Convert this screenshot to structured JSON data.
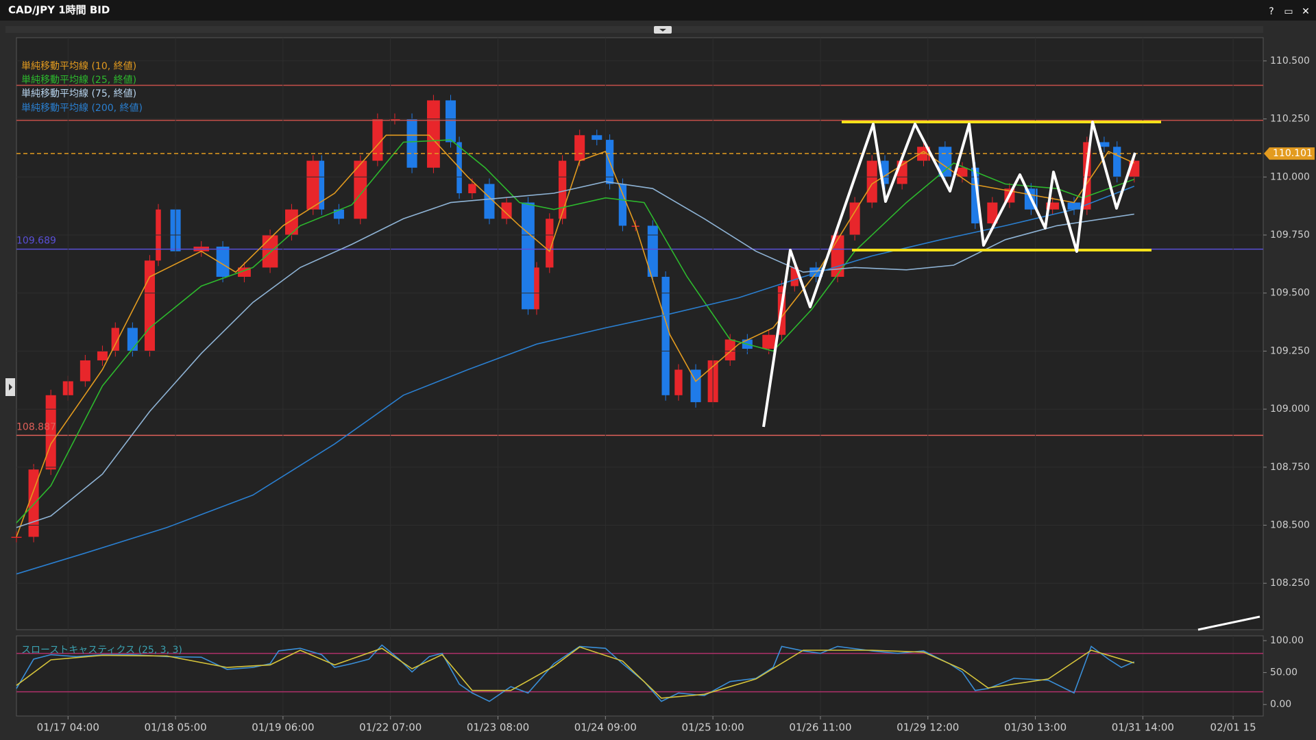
{
  "window": {
    "controls": [
      "?",
      "▭",
      "✕"
    ]
  },
  "chart_data": [
    {
      "type": "candlestick",
      "title": "CAD/JPY 1時間 BID",
      "up_color": "#e8262b",
      "down_color": "#1f7be8",
      "grid": true,
      "xlim": [
        0,
        290
      ],
      "xticks": [
        {
          "value": 12,
          "label": "01/17 04:00"
        },
        {
          "value": 37,
          "label": "01/18 05:00"
        },
        {
          "value": 62,
          "label": "01/19 06:00"
        },
        {
          "value": 87,
          "label": "01/22 07:00"
        },
        {
          "value": 112,
          "label": "01/23 08:00"
        },
        {
          "value": 137,
          "label": "01/24 09:00"
        },
        {
          "value": 162,
          "label": "01/25 10:00"
        },
        {
          "value": 187,
          "label": "01/26 11:00"
        },
        {
          "value": 212,
          "label": "01/29 12:00"
        },
        {
          "value": 237,
          "label": "01/30 13:00"
        },
        {
          "value": 262,
          "label": "01/31 14:00"
        },
        {
          "value": 283,
          "label": "02/01 15"
        }
      ],
      "ylim": [
        108.05,
        110.6
      ],
      "yticks": [
        {
          "value": 108.25,
          "label": "108.250"
        },
        {
          "value": 108.5,
          "label": "108.500"
        },
        {
          "value": 108.75,
          "label": "108.750"
        },
        {
          "value": 109,
          "label": "109.000"
        },
        {
          "value": 109.25,
          "label": "109.250"
        },
        {
          "value": 109.5,
          "label": "109.500"
        },
        {
          "value": 109.75,
          "label": "109.750"
        },
        {
          "value": 110,
          "label": "110.000"
        },
        {
          "value": 110.25,
          "label": "110.250"
        },
        {
          "value": 110.5,
          "label": "110.500"
        }
      ],
      "x": [
        0,
        4,
        8,
        12,
        16,
        20,
        23,
        27,
        31,
        33,
        37,
        43,
        48,
        53,
        59,
        64,
        69,
        71,
        75,
        80,
        84,
        88,
        92,
        97,
        101,
        103,
        106,
        110,
        114,
        119,
        121,
        124,
        127,
        131,
        135,
        138,
        141,
        144,
        148,
        151,
        154,
        158,
        162,
        166,
        170,
        175,
        178,
        181,
        186,
        191,
        195,
        199,
        202,
        206,
        211,
        216,
        220,
        223,
        227,
        231,
        236,
        241,
        246,
        249,
        253,
        256,
        260
      ],
      "close": [
        108.45,
        108.74,
        109.06,
        109.12,
        109.21,
        109.25,
        109.35,
        109.25,
        109.64,
        109.86,
        109.68,
        109.7,
        109.57,
        109.61,
        109.75,
        109.86,
        110.07,
        109.86,
        109.82,
        110.07,
        110.25,
        110.25,
        110.04,
        110.33,
        110.15,
        109.93,
        109.97,
        109.82,
        109.89,
        109.43,
        109.61,
        109.82,
        110.07,
        110.18,
        110.16,
        109.97,
        109.79,
        109.79,
        109.57,
        109.06,
        109.17,
        109.03,
        109.21,
        109.3,
        109.26,
        109.32,
        109.53,
        109.61,
        109.57,
        109.75,
        109.89,
        110.07,
        109.97,
        110.07,
        110.13,
        110.0,
        110.04,
        109.8,
        109.89,
        109.95,
        109.86,
        109.89,
        109.86,
        110.15,
        110.13,
        110.0,
        110.07
      ],
      "current_price": {
        "value": 110.101,
        "label": "110.101",
        "color": "#e39b1f"
      },
      "levels": [
        {
          "value": 110.395,
          "color": "#c8504a"
        },
        {
          "value": 110.244,
          "color": "#c8504a"
        },
        {
          "value": 109.689,
          "label": "109.689",
          "color": "#5a50d8"
        },
        {
          "value": 108.887,
          "label": "108.887",
          "color": "#e0605a"
        }
      ],
      "series": [
        {
          "name": "単純移動平均線 (10, 終値)",
          "color": "#e39b1f",
          "x": [
            0,
            8,
            20,
            31,
            43,
            51,
            62,
            74,
            86,
            96,
            105,
            117,
            124,
            131,
            137,
            144,
            152,
            158,
            168,
            176,
            187,
            199,
            211,
            222,
            234,
            246,
            254,
            260
          ],
          "values": [
            108.45,
            108.85,
            109.17,
            109.57,
            109.68,
            109.59,
            109.79,
            109.93,
            110.18,
            110.18,
            110.0,
            109.79,
            109.68,
            110.07,
            110.11,
            109.79,
            109.32,
            109.12,
            109.28,
            109.35,
            109.61,
            109.97,
            110.11,
            109.97,
            109.93,
            109.89,
            110.11,
            110.06
          ]
        },
        {
          "name": "単純移動平均線 (25, 終値)",
          "color": "#2db92d",
          "x": [
            0,
            8,
            20,
            31,
            43,
            55,
            66,
            78,
            90,
            101,
            109,
            117,
            125,
            137,
            146,
            156,
            166,
            176,
            185,
            195,
            207,
            218,
            230,
            242,
            248,
            260
          ],
          "values": [
            108.51,
            108.67,
            109.1,
            109.35,
            109.53,
            109.61,
            109.79,
            109.88,
            110.15,
            110.16,
            110.04,
            109.89,
            109.86,
            109.91,
            109.89,
            109.57,
            109.3,
            109.25,
            109.43,
            109.68,
            109.89,
            110.06,
            109.97,
            109.95,
            109.91,
            109.99
          ]
        },
        {
          "name": "単純移動平均線 (75, 終値)",
          "color": "#8fb4d6",
          "x": [
            0,
            8,
            20,
            31,
            43,
            55,
            66,
            78,
            90,
            101,
            113,
            125,
            137,
            148,
            160,
            172,
            183,
            195,
            207,
            218,
            230,
            242,
            260
          ],
          "values": [
            108.49,
            108.54,
            108.72,
            108.99,
            109.24,
            109.46,
            109.61,
            109.71,
            109.82,
            109.89,
            109.91,
            109.93,
            109.98,
            109.95,
            109.82,
            109.68,
            109.59,
            109.61,
            109.6,
            109.62,
            109.73,
            109.79,
            109.84
          ]
        },
        {
          "name": "単純移動平均線 (200, 終値)",
          "color": "#2a7fd0",
          "x": [
            0,
            16,
            35,
            55,
            74,
            90,
            105,
            121,
            137,
            152,
            168,
            183,
            199,
            215,
            230,
            246,
            260
          ],
          "values": [
            108.29,
            108.38,
            108.49,
            108.63,
            108.85,
            109.06,
            109.17,
            109.28,
            109.35,
            109.41,
            109.48,
            109.57,
            109.66,
            109.73,
            109.79,
            109.86,
            109.96
          ]
        }
      ]
    },
    {
      "type": "line",
      "title": "スローストキャスティクス (25, 3, 3)",
      "xlim": [
        0,
        290
      ],
      "ylim": [
        -18,
        107.5
      ],
      "yticks": [
        {
          "value": 0,
          "label": "0.00"
        },
        {
          "value": 50,
          "label": "50.00"
        },
        {
          "value": 100,
          "label": "100.00"
        }
      ],
      "levels": [
        {
          "value": 80,
          "color": "#b0306a"
        },
        {
          "value": 20,
          "color": "#b0306a"
        }
      ],
      "series": [
        {
          "color": "#3a8fd8",
          "x": [
            0,
            4,
            8,
            14,
            20,
            27,
            35,
            43,
            49,
            55,
            59,
            61,
            66,
            71,
            74,
            78,
            82,
            85,
            89,
            92,
            96,
            99,
            103,
            106,
            110,
            115,
            119,
            125,
            131,
            137,
            141,
            146,
            150,
            154,
            160,
            166,
            172,
            176,
            178,
            183,
            187,
            191,
            199,
            205,
            211,
            217,
            220,
            223,
            226,
            232,
            240,
            246,
            250,
            254,
            257,
            260
          ],
          "values": [
            25,
            71,
            78,
            75,
            78,
            78,
            75,
            74,
            55,
            58,
            64,
            84,
            88,
            78,
            58,
            64,
            71,
            93,
            71,
            51,
            75,
            80,
            32,
            18,
            5,
            28,
            18,
            64,
            91,
            88,
            64,
            36,
            5,
            18,
            14,
            36,
            41,
            58,
            91,
            84,
            80,
            91,
            84,
            80,
            84,
            64,
            51,
            22,
            25,
            41,
            38,
            18,
            91,
            71,
            58,
            67
          ]
        },
        {
          "color": "#d6c43a",
          "x": [
            0,
            8,
            20,
            35,
            49,
            59,
            66,
            74,
            85,
            92,
            99,
            106,
            115,
            125,
            131,
            141,
            150,
            160,
            172,
            183,
            199,
            211,
            220,
            226,
            240,
            250,
            260
          ],
          "values": [
            30,
            70,
            77,
            76,
            58,
            62,
            85,
            62,
            88,
            56,
            78,
            22,
            22,
            60,
            90,
            68,
            10,
            16,
            40,
            85,
            85,
            82,
            55,
            26,
            40,
            85,
            65
          ]
        }
      ]
    }
  ]
}
